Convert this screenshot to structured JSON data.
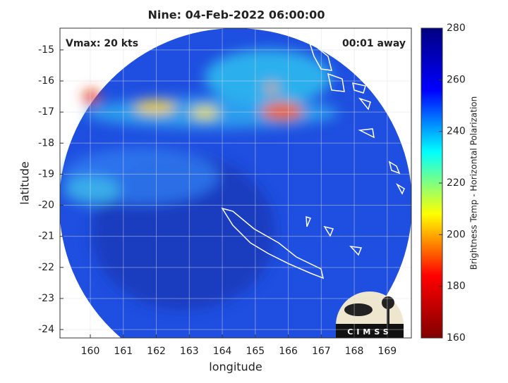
{
  "chart_data": {
    "type": "image",
    "title": "Nine: 04-Feb-2022 06:00:00",
    "xlabel": "longitude",
    "ylabel": "latitude",
    "xlim": [
      159.08,
      169.73
    ],
    "ylim": [
      -24.27,
      -14.3
    ],
    "xticks": [
      160,
      161,
      162,
      163,
      164,
      165,
      166,
      167,
      168,
      169
    ],
    "yticks": [
      -24,
      -23,
      -22,
      -21,
      -20,
      -19,
      -18,
      -17,
      -16,
      -15
    ],
    "grid": true,
    "annotations": [
      "Vmax: 20 kts",
      "00:01 away"
    ],
    "colorbar": {
      "label": "Brightness Temp - Horizontal Polarization",
      "lim": [
        160,
        280
      ],
      "ticks": [
        160,
        180,
        200,
        220,
        240,
        260,
        280
      ],
      "colormap": "jet"
    },
    "logo": "CIMSS"
  }
}
